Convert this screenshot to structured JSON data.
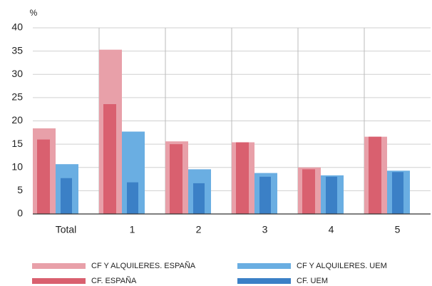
{
  "chart_data": {
    "type": "bar",
    "y_unit": "%",
    "categories": [
      "Total",
      "1",
      "2",
      "3",
      "4",
      "5"
    ],
    "series": [
      {
        "name": "CF Y ALQUILERES. ESPAÑA",
        "color": "#e8a0a9",
        "values": [
          18.4,
          35.3,
          15.6,
          15.4,
          10.0,
          16.6
        ]
      },
      {
        "name": "CF Y ALQUILERES. UEM",
        "color": "#6aaee2",
        "values": [
          10.7,
          17.7,
          9.6,
          8.8,
          8.3,
          9.3
        ]
      },
      {
        "name": "CF. ESPAÑA",
        "color": "#d9606f",
        "values": [
          16.0,
          23.6,
          15.0,
          15.4,
          9.6,
          16.6
        ]
      },
      {
        "name": "CF. UEM",
        "color": "#3b80c6",
        "values": [
          7.7,
          6.8,
          6.6,
          8.0,
          8.0,
          9.0
        ]
      }
    ],
    "ylim": [
      0,
      40
    ],
    "yticks": [
      0,
      5,
      10,
      15,
      20,
      25,
      30,
      35,
      40
    ],
    "grid": true
  }
}
